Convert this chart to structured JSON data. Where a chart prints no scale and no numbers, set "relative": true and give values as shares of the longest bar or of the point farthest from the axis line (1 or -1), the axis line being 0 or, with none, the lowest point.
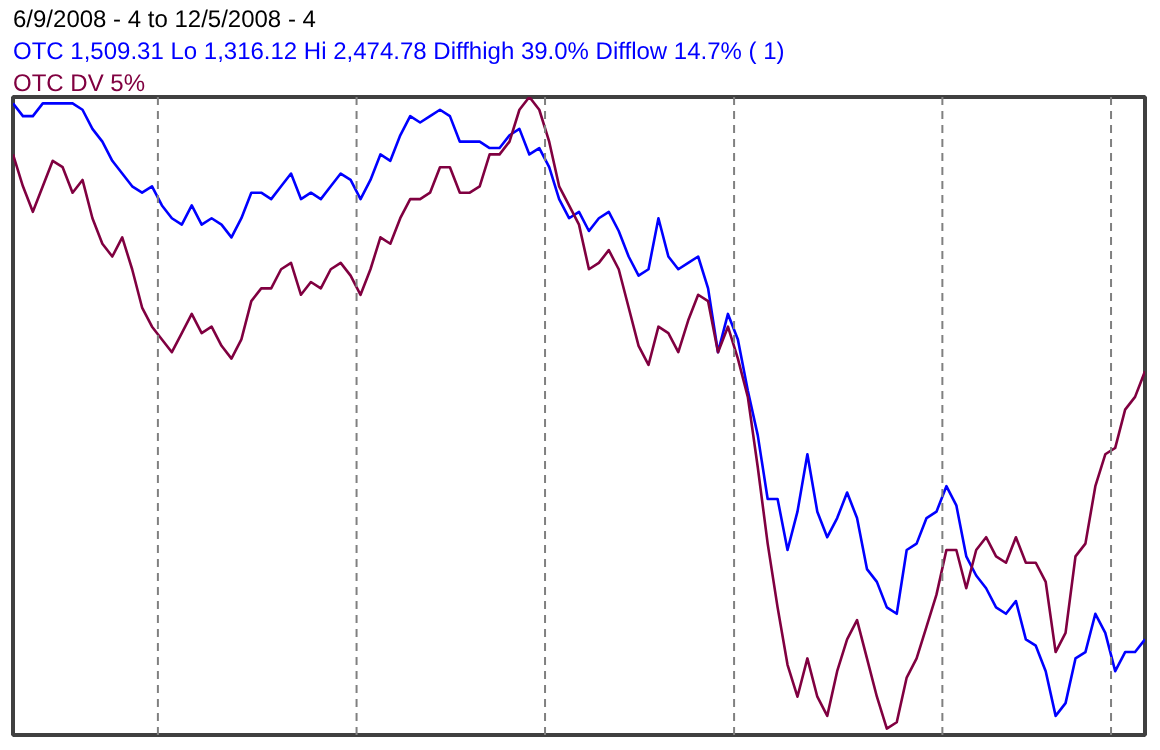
{
  "chart_data": {
    "type": "line",
    "title": "6/9/2008 - 4 to 12/5/2008 - 4",
    "relative": true,
    "tick_labels": false,
    "categories": [
      null,
      null,
      null,
      null,
      null,
      null,
      null,
      null,
      null,
      null,
      null,
      null,
      null,
      null,
      null,
      null,
      null,
      null,
      null,
      null,
      null,
      null,
      null,
      null,
      null,
      null,
      null,
      null,
      null,
      null,
      null,
      null,
      null,
      null,
      null,
      null,
      null,
      null,
      null,
      null,
      null,
      null,
      null,
      null,
      null,
      null,
      null,
      null,
      null,
      null,
      null,
      null,
      null,
      null,
      null,
      null,
      null,
      null,
      null,
      null,
      null,
      null,
      null,
      null,
      null,
      null,
      null,
      null,
      null,
      null,
      null,
      null,
      null,
      null,
      null,
      null,
      null,
      null,
      null,
      null,
      null,
      null,
      null,
      null,
      null,
      null,
      null,
      null,
      null,
      null,
      null,
      null,
      null,
      null,
      null,
      null,
      null,
      null,
      null,
      null,
      null,
      null,
      null,
      null,
      null,
      null,
      null,
      null,
      null,
      null,
      null,
      null,
      null,
      null,
      null
    ],
    "series": [
      {
        "name": "OTC 1,509.31 Lo 1,316.12 Hi 2,474.78 Diffhigh 39.0% Difflow 14.7% ( 1)",
        "color": "#0000ff",
        "values": [
          0.99,
          0.97,
          0.97,
          0.99,
          0.99,
          0.99,
          0.99,
          0.98,
          0.95,
          0.93,
          0.9,
          0.88,
          0.86,
          0.85,
          0.86,
          0.83,
          0.81,
          0.8,
          0.83,
          0.8,
          0.81,
          0.8,
          0.78,
          0.81,
          0.85,
          0.85,
          0.84,
          0.86,
          0.88,
          0.84,
          0.85,
          0.84,
          0.86,
          0.88,
          0.87,
          0.84,
          0.87,
          0.91,
          0.9,
          0.94,
          0.97,
          0.96,
          0.97,
          0.98,
          0.97,
          0.93,
          0.93,
          0.93,
          0.92,
          0.92,
          0.94,
          0.95,
          0.91,
          0.92,
          0.89,
          0.84,
          0.81,
          0.82,
          0.79,
          0.81,
          0.82,
          0.79,
          0.75,
          0.72,
          0.73,
          0.81,
          0.75,
          0.73,
          0.74,
          0.75,
          0.7,
          0.6,
          0.66,
          0.62,
          0.54,
          0.47,
          0.37,
          0.37,
          0.29,
          0.35,
          0.44,
          0.35,
          0.31,
          0.34,
          0.38,
          0.34,
          0.26,
          0.24,
          0.2,
          0.19,
          0.29,
          0.3,
          0.34,
          0.35,
          0.39,
          0.36,
          0.28,
          0.25,
          0.23,
          0.2,
          0.19,
          0.21,
          0.15,
          0.14,
          0.1,
          0.03,
          0.05,
          0.12,
          0.13,
          0.19,
          0.16,
          0.1,
          0.13,
          0.13,
          0.15
        ]
      },
      {
        "name": "OTC DV 5%",
        "color": "#800040",
        "values": [
          0.91,
          0.86,
          0.82,
          0.86,
          0.9,
          0.89,
          0.85,
          0.87,
          0.81,
          0.77,
          0.75,
          0.78,
          0.73,
          0.67,
          0.64,
          0.62,
          0.6,
          0.63,
          0.66,
          0.63,
          0.64,
          0.61,
          0.59,
          0.62,
          0.68,
          0.7,
          0.7,
          0.73,
          0.74,
          0.69,
          0.71,
          0.7,
          0.73,
          0.74,
          0.72,
          0.69,
          0.73,
          0.78,
          0.77,
          0.81,
          0.84,
          0.84,
          0.85,
          0.89,
          0.89,
          0.85,
          0.85,
          0.86,
          0.91,
          0.91,
          0.93,
          0.98,
          1,
          0.98,
          0.93,
          0.86,
          0.83,
          0.8,
          0.73,
          0.74,
          0.76,
          0.73,
          0.67,
          0.61,
          0.58,
          0.64,
          0.63,
          0.6,
          0.65,
          0.69,
          0.68,
          0.6,
          0.64,
          0.59,
          0.53,
          0.42,
          0.3,
          0.2,
          0.11,
          0.06,
          0.12,
          0.06,
          0.03,
          0.1,
          0.15,
          0.18,
          0.12,
          0.06,
          0.01,
          0.02,
          0.09,
          0.12,
          0.17,
          0.22,
          0.29,
          0.29,
          0.23,
          0.29,
          0.31,
          0.28,
          0.27,
          0.31,
          0.27,
          0.27,
          0.24,
          0.13,
          0.16,
          0.28,
          0.3,
          0.39,
          0.44,
          0.45,
          0.51,
          0.53,
          0.57
        ]
      }
    ]
  }
}
